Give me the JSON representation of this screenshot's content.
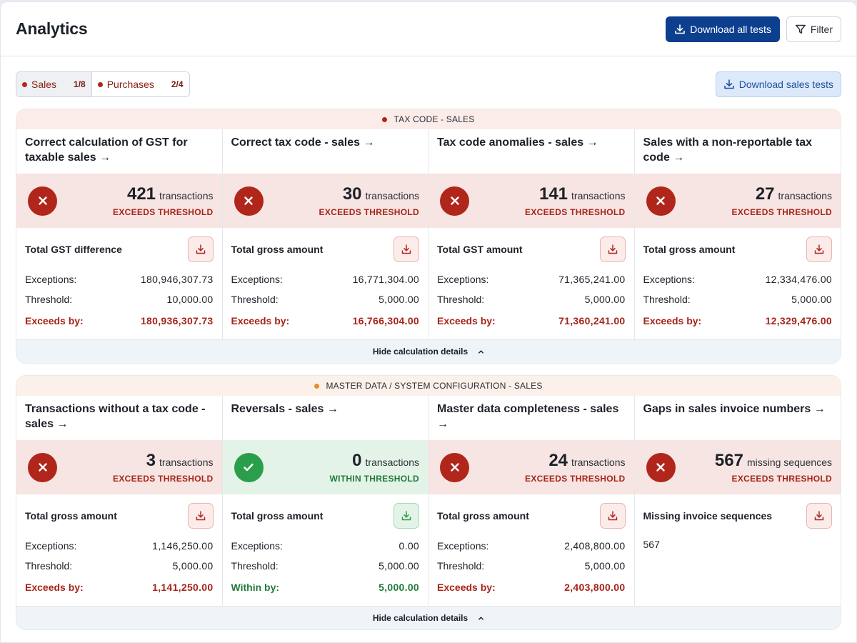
{
  "header": {
    "title": "Analytics",
    "download_all_label": "Download all tests",
    "filter_label": "Filter"
  },
  "tabs": [
    {
      "label": "Sales",
      "count": "1/8"
    },
    {
      "label": "Purchases",
      "count": "2/4"
    }
  ],
  "download_sales_label": "Download sales tests",
  "colors": {
    "fail": "#b1261b",
    "pass": "#2a9e4a",
    "primary": "#0d3f8f",
    "group_dot_red": "#b1261b",
    "group_dot_orange": "#ee8a2b"
  },
  "groups": [
    {
      "title": "TAX CODE - SALES",
      "footer": "Hide calculation details",
      "cards": [
        {
          "title": "Correct calculation of GST for taxable sales →",
          "count": "421",
          "unit": "transactions",
          "status": "EXCEEDS THRESHOLD",
          "detail_title": "Total GST difference",
          "exceptions_label": "Exceptions:",
          "exceptions": "180,946,307.73",
          "threshold_label": "Threshold:",
          "threshold": "10,000.00",
          "diff_label": "Exceeds by:",
          "diff": "180,936,307.73"
        },
        {
          "title": "Correct tax code - sales →",
          "count": "30",
          "unit": "transactions",
          "status": "EXCEEDS THRESHOLD",
          "detail_title": "Total gross amount",
          "exceptions_label": "Exceptions:",
          "exceptions": "16,771,304.00",
          "threshold_label": "Threshold:",
          "threshold": "5,000.00",
          "diff_label": "Exceeds by:",
          "diff": "16,766,304.00"
        },
        {
          "title": "Tax code anomalies - sales →",
          "count": "141",
          "unit": "transactions",
          "status": "EXCEEDS THRESHOLD",
          "detail_title": "Total GST amount",
          "exceptions_label": "Exceptions:",
          "exceptions": "71,365,241.00",
          "threshold_label": "Threshold:",
          "threshold": "5,000.00",
          "diff_label": "Exceeds by:",
          "diff": "71,360,241.00"
        },
        {
          "title": "Sales with a non-reportable tax code →",
          "count": "27",
          "unit": "transactions",
          "status": "EXCEEDS THRESHOLD",
          "detail_title": "Total gross amount",
          "exceptions_label": "Exceptions:",
          "exceptions": "12,334,476.00",
          "threshold_label": "Threshold:",
          "threshold": "5,000.00",
          "diff_label": "Exceeds by:",
          "diff": "12,329,476.00"
        }
      ]
    },
    {
      "title": "MASTER DATA / SYSTEM CONFIGURATION - SALES",
      "footer": "Hide calculation details",
      "cards": [
        {
          "title": "Transactions without a tax code - sales →",
          "count": "3",
          "unit": "transactions",
          "status": "EXCEEDS THRESHOLD",
          "detail_title": "Total gross amount",
          "exceptions_label": "Exceptions:",
          "exceptions": "1,146,250.00",
          "threshold_label": "Threshold:",
          "threshold": "5,000.00",
          "diff_label": "Exceeds by:",
          "diff": "1,141,250.00"
        },
        {
          "title": "Reversals - sales →",
          "count": "0",
          "unit": "transactions",
          "status": "WITHIN THRESHOLD",
          "detail_title": "Total gross amount",
          "exceptions_label": "Exceptions:",
          "exceptions": "0.00",
          "threshold_label": "Threshold:",
          "threshold": "5,000.00",
          "diff_label": "Within by:",
          "diff": "5,000.00"
        },
        {
          "title": "Master data completeness - sales →",
          "count": "24",
          "unit": "transactions",
          "status": "EXCEEDS THRESHOLD",
          "detail_title": "Total gross amount",
          "exceptions_label": "Exceptions:",
          "exceptions": "2,408,800.00",
          "threshold_label": "Threshold:",
          "threshold": "5,000.00",
          "diff_label": "Exceeds by:",
          "diff": "2,403,800.00"
        },
        {
          "title": "Gaps in sales invoice numbers →",
          "count": "567",
          "unit": "missing sequences",
          "status": "EXCEEDS THRESHOLD",
          "detail_title": "Missing invoice sequences",
          "note": "567"
        }
      ]
    }
  ]
}
